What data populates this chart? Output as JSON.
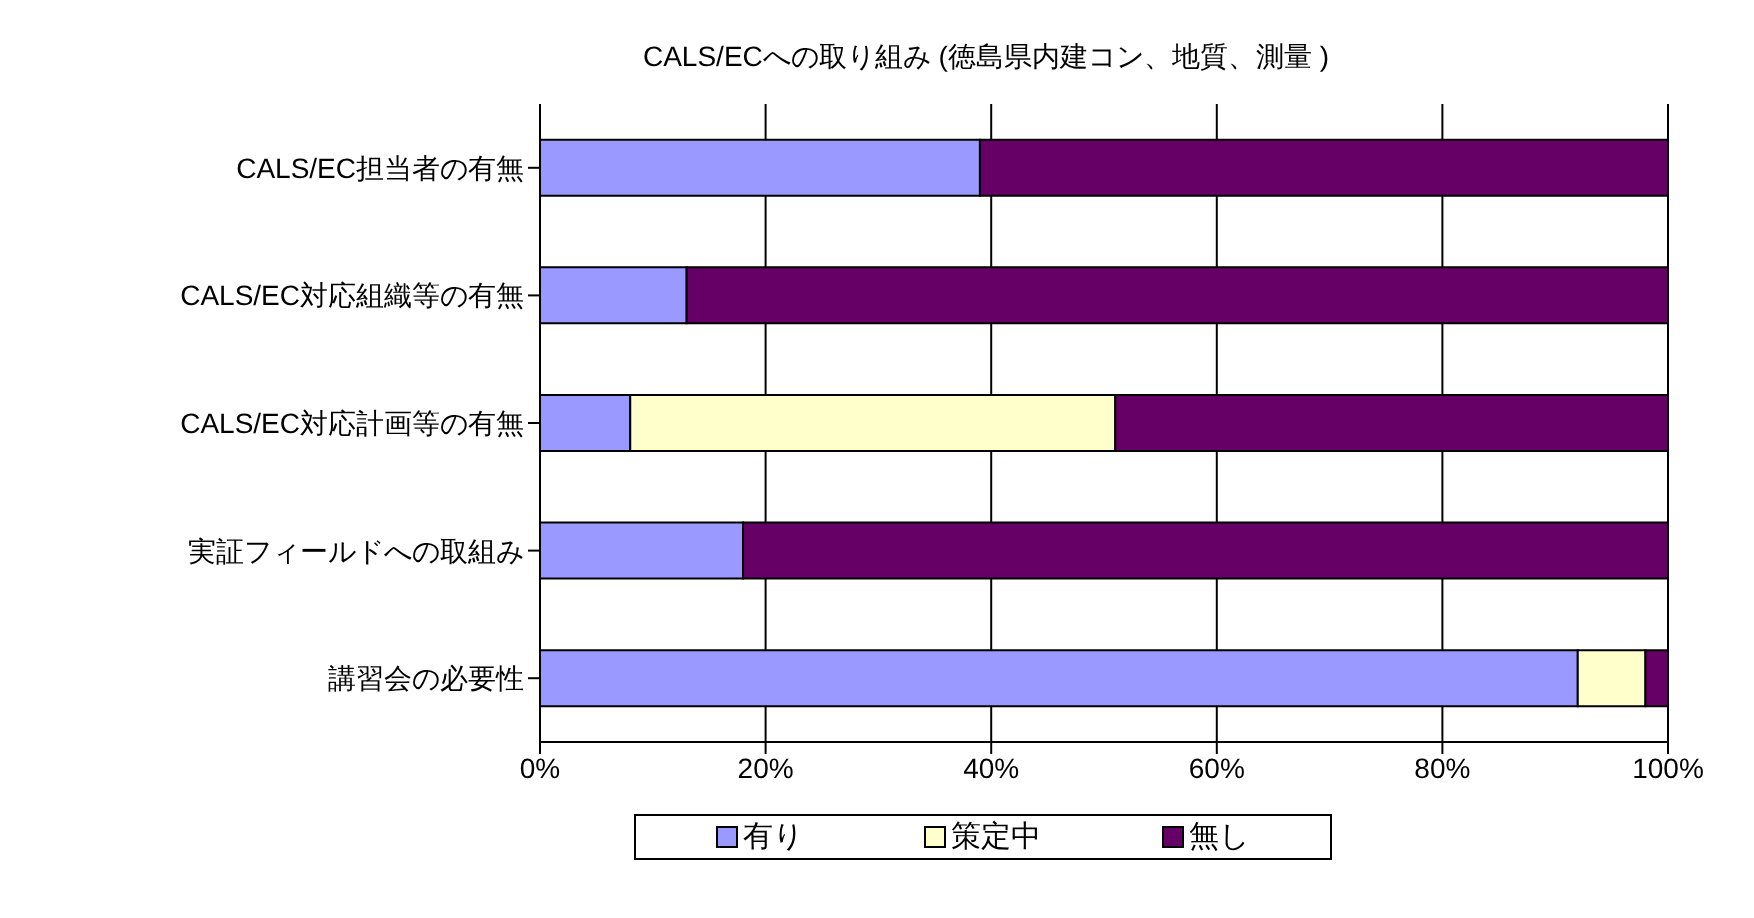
{
  "chart_data": {
    "type": "bar",
    "orientation": "horizontal",
    "stacked": true,
    "title": "CALS/ECへの取り組み (徳島県内建コン、地質、測量 )",
    "categories": [
      "CALS/EC担当者の有無",
      "CALS/EC対応組織等の有無",
      "CALS/EC対応計画等の有無",
      "実証フィールドへの取組み",
      "講習会の必要性"
    ],
    "series": [
      {
        "name": "有り",
        "color": "#9999ff",
        "values": [
          39,
          13,
          8,
          18,
          92
        ]
      },
      {
        "name": "策定中",
        "color": "#ffffcc",
        "values": [
          0,
          0,
          43,
          0,
          6
        ]
      },
      {
        "name": "無し",
        "color": "#660066",
        "values": [
          61,
          87,
          49,
          82,
          2
        ]
      }
    ],
    "xlim": [
      0,
      100
    ],
    "xticks": [
      {
        "value": 0,
        "label": "0%"
      },
      {
        "value": 20,
        "label": "20%"
      },
      {
        "value": 40,
        "label": "40%"
      },
      {
        "value": 60,
        "label": "60%"
      },
      {
        "value": 80,
        "label": "80%"
      },
      {
        "value": 100,
        "label": "100%"
      }
    ],
    "grid": "x",
    "legend": "bottom"
  }
}
